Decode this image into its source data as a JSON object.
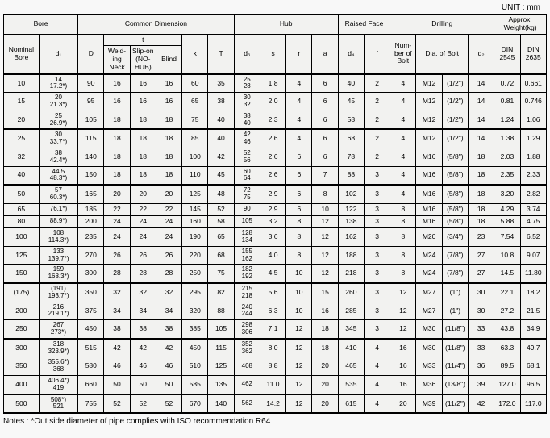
{
  "unit_label": "UNIT : mm",
  "notes": "Notes : *Out side diameter of pipe complies with ISO recommendation R64",
  "header": {
    "bore": "Bore",
    "common": "Common Dimension",
    "hub": "Hub",
    "raised": "Raised Face",
    "drilling": "Drilling",
    "weight": "Approx. Weight(kg)",
    "nominal_bore": "Nominal Bore",
    "d1": "d₁",
    "D": "D",
    "t": "t",
    "welding_neck": "Weld-ing Neck",
    "slip_on": "Slip-on (NO-HUB)",
    "blind": "Blind",
    "k": "k",
    "T": "T",
    "d3": "d₃",
    "s": "s",
    "r": "r",
    "a": "a",
    "d4": "d₄",
    "f": "f",
    "num_bolt": "Num-ber of Bolt",
    "dia_bolt": "Dia. of Bolt",
    "d2": "d₂",
    "din2545": "DIN 2545",
    "din2635": "DIN 2635"
  },
  "groups": [
    {
      "rows": [
        {
          "nom": "10",
          "d1": "14\n17.2*)",
          "D": "90",
          "wn": "16",
          "so": "16",
          "bl": "16",
          "k": "60",
          "T": "35",
          "d3": "25\n28",
          "s": "1.8",
          "r": "4",
          "a": "6",
          "d4": "40",
          "f": "2",
          "nb": "4",
          "dia": "M12",
          "dia2": "(1/2\")",
          "d2": "14",
          "w1": "0.72",
          "w2": "0.661"
        },
        {
          "nom": "15",
          "d1": "20\n21.3*)",
          "D": "95",
          "wn": "16",
          "so": "16",
          "bl": "16",
          "k": "65",
          "T": "38",
          "d3": "30\n32",
          "s": "2.0",
          "r": "4",
          "a": "6",
          "d4": "45",
          "f": "2",
          "nb": "4",
          "dia": "M12",
          "dia2": "(1/2\")",
          "d2": "14",
          "w1": "0.81",
          "w2": "0.746"
        },
        {
          "nom": "20",
          "d1": "25\n26.9*)",
          "D": "105",
          "wn": "18",
          "so": "18",
          "bl": "18",
          "k": "75",
          "T": "40",
          "d3": "38\n40",
          "s": "2.3",
          "r": "4",
          "a": "6",
          "d4": "58",
          "f": "2",
          "nb": "4",
          "dia": "M12",
          "dia2": "(1/2\")",
          "d2": "14",
          "w1": "1.24",
          "w2": "1.06"
        }
      ]
    },
    {
      "rows": [
        {
          "nom": "25",
          "d1": "30\n33.7*)",
          "D": "115",
          "wn": "18",
          "so": "18",
          "bl": "18",
          "k": "85",
          "T": "40",
          "d3": "42\n46",
          "s": "2.6",
          "r": "4",
          "a": "6",
          "d4": "68",
          "f": "2",
          "nb": "4",
          "dia": "M12",
          "dia2": "(1/2\")",
          "d2": "14",
          "w1": "1.38",
          "w2": "1.29"
        },
        {
          "nom": "32",
          "d1": "38\n42.4*)",
          "D": "140",
          "wn": "18",
          "so": "18",
          "bl": "18",
          "k": "100",
          "T": "42",
          "d3": "52\n56",
          "s": "2.6",
          "r": "6",
          "a": "6",
          "d4": "78",
          "f": "2",
          "nb": "4",
          "dia": "M16",
          "dia2": "(5/8\")",
          "d2": "18",
          "w1": "2.03",
          "w2": "1.88"
        },
        {
          "nom": "40",
          "d1": "44.5\n48.3*)",
          "D": "150",
          "wn": "18",
          "so": "18",
          "bl": "18",
          "k": "110",
          "T": "45",
          "d3": "60\n64",
          "s": "2.6",
          "r": "6",
          "a": "7",
          "d4": "88",
          "f": "3",
          "nb": "4",
          "dia": "M16",
          "dia2": "(5/8\")",
          "d2": "18",
          "w1": "2.35",
          "w2": "2.33"
        }
      ]
    },
    {
      "rows": [
        {
          "nom": "50",
          "d1": "57\n60.3*)",
          "D": "165",
          "wn": "20",
          "so": "20",
          "bl": "20",
          "k": "125",
          "T": "48",
          "d3": "72\n75",
          "s": "2.9",
          "r": "6",
          "a": "8",
          "d4": "102",
          "f": "3",
          "nb": "4",
          "dia": "M16",
          "dia2": "(5/8\")",
          "d2": "18",
          "w1": "3.20",
          "w2": "2.82"
        },
        {
          "nom": "65",
          "d1": "76.1*)",
          "D": "185",
          "wn": "22",
          "so": "22",
          "bl": "22",
          "k": "145",
          "T": "52",
          "d3": "90",
          "s": "2.9",
          "r": "6",
          "a": "10",
          "d4": "122",
          "f": "3",
          "nb": "8",
          "dia": "M16",
          "dia2": "(5/8\")",
          "d2": "18",
          "w1": "4.29",
          "w2": "3.74"
        },
        {
          "nom": "80",
          "d1": "88.9*)",
          "D": "200",
          "wn": "24",
          "so": "24",
          "bl": "24",
          "k": "160",
          "T": "58",
          "d3": "105",
          "s": "3.2",
          "r": "8",
          "a": "12",
          "d4": "138",
          "f": "3",
          "nb": "8",
          "dia": "M16",
          "dia2": "(5/8\")",
          "d2": "18",
          "w1": "5.88",
          "w2": "4.75"
        }
      ]
    },
    {
      "rows": [
        {
          "nom": "100",
          "d1": "108\n114.3*)",
          "D": "235",
          "wn": "24",
          "so": "24",
          "bl": "24",
          "k": "190",
          "T": "65",
          "d3": "128\n134",
          "s": "3.6",
          "r": "8",
          "a": "12",
          "d4": "162",
          "f": "3",
          "nb": "8",
          "dia": "M20",
          "dia2": "(3/4\")",
          "d2": "23",
          "w1": "7.54",
          "w2": "6.52"
        },
        {
          "nom": "125",
          "d1": "133\n139.7*)",
          "D": "270",
          "wn": "26",
          "so": "26",
          "bl": "26",
          "k": "220",
          "T": "68",
          "d3": "155\n162",
          "s": "4.0",
          "r": "8",
          "a": "12",
          "d4": "188",
          "f": "3",
          "nb": "8",
          "dia": "M24",
          "dia2": "(7/8\")",
          "d2": "27",
          "w1": "10.8",
          "w2": "9.07"
        },
        {
          "nom": "150",
          "d1": "159\n168.3*)",
          "D": "300",
          "wn": "28",
          "so": "28",
          "bl": "28",
          "k": "250",
          "T": "75",
          "d3": "182\n192",
          "s": "4.5",
          "r": "10",
          "a": "12",
          "d4": "218",
          "f": "3",
          "nb": "8",
          "dia": "M24",
          "dia2": "(7/8\")",
          "d2": "27",
          "w1": "14.5",
          "w2": "11.80"
        }
      ]
    },
    {
      "rows": [
        {
          "nom": "(175)",
          "d1": "(191)\n193.7*)",
          "D": "350",
          "wn": "32",
          "so": "32",
          "bl": "32",
          "k": "295",
          "T": "82",
          "d3": "215\n218",
          "s": "5.6",
          "r": "10",
          "a": "15",
          "d4": "260",
          "f": "3",
          "nb": "12",
          "dia": "M27",
          "dia2": "(1\")",
          "d2": "30",
          "w1": "22.1",
          "w2": "18.2"
        },
        {
          "nom": "200",
          "d1": "216\n219.1*)",
          "D": "375",
          "wn": "34",
          "so": "34",
          "bl": "34",
          "k": "320",
          "T": "88",
          "d3": "240\n244",
          "s": "6.3",
          "r": "10",
          "a": "16",
          "d4": "285",
          "f": "3",
          "nb": "12",
          "dia": "M27",
          "dia2": "(1\")",
          "d2": "30",
          "w1": "27.2",
          "w2": "21.5"
        },
        {
          "nom": "250",
          "d1": "267\n273*)",
          "D": "450",
          "wn": "38",
          "so": "38",
          "bl": "38",
          "k": "385",
          "T": "105",
          "d3": "298\n306",
          "s": "7.1",
          "r": "12",
          "a": "18",
          "d4": "345",
          "f": "3",
          "nb": "12",
          "dia": "M30",
          "dia2": "(11/8\")",
          "d2": "33",
          "w1": "43.8",
          "w2": "34.9"
        }
      ]
    },
    {
      "rows": [
        {
          "nom": "300",
          "d1": "318\n323.9*)",
          "D": "515",
          "wn": "42",
          "so": "42",
          "bl": "42",
          "k": "450",
          "T": "115",
          "d3": "352\n362",
          "s": "8.0",
          "r": "12",
          "a": "18",
          "d4": "410",
          "f": "4",
          "nb": "16",
          "dia": "M30",
          "dia2": "(11/8\")",
          "d2": "33",
          "w1": "63.3",
          "w2": "49.7"
        },
        {
          "nom": "350",
          "d1": "355.6*)\n368",
          "D": "580",
          "wn": "46",
          "so": "46",
          "bl": "46",
          "k": "510",
          "T": "125",
          "d3": "408",
          "s": "8.8",
          "r": "12",
          "a": "20",
          "d4": "465",
          "f": "4",
          "nb": "16",
          "dia": "M33",
          "dia2": "(11/4\")",
          "d2": "36",
          "w1": "89.5",
          "w2": "68.1"
        },
        {
          "nom": "400",
          "d1": "406.4*)\n419",
          "D": "660",
          "wn": "50",
          "so": "50",
          "bl": "50",
          "k": "585",
          "T": "135",
          "d3": "462",
          "s": "11.0",
          "r": "12",
          "a": "20",
          "d4": "535",
          "f": "4",
          "nb": "16",
          "dia": "M36",
          "dia2": "(13/8\")",
          "d2": "39",
          "w1": "127.0",
          "w2": "96.5"
        }
      ]
    },
    {
      "rows": [
        {
          "nom": "500",
          "d1": "508*)\n521",
          "D": "755",
          "wn": "52",
          "so": "52",
          "bl": "52",
          "k": "670",
          "T": "140",
          "d3": "562",
          "s": "14.2",
          "r": "12",
          "a": "20",
          "d4": "615",
          "f": "4",
          "nb": "20",
          "dia": "M39",
          "dia2": "(11/2\")",
          "d2": "42",
          "w1": "172.0",
          "w2": "117.0"
        }
      ]
    }
  ]
}
